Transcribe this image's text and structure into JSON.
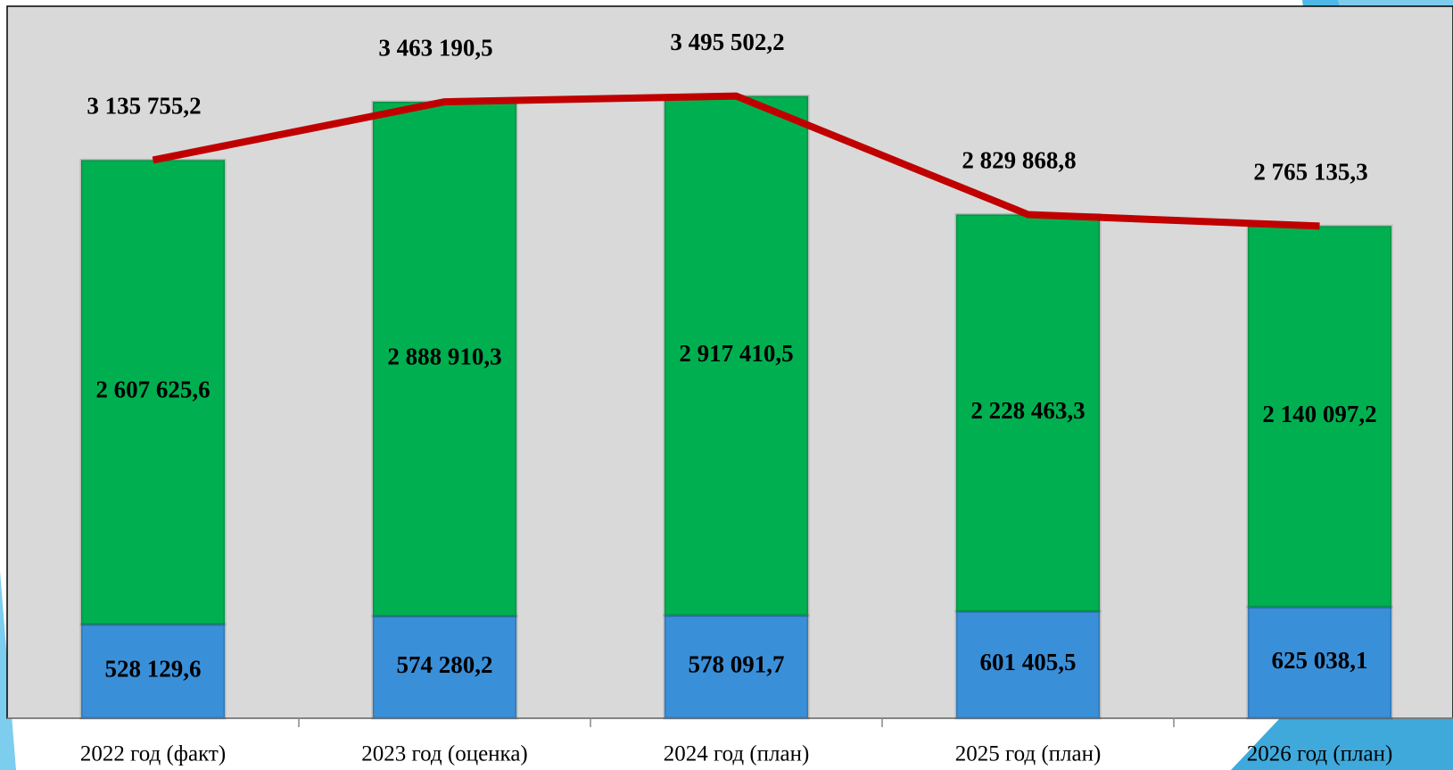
{
  "chart_data": {
    "type": "bar",
    "stacked": true,
    "categories": [
      "2022 год (факт)",
      "2023 год (оценка)",
      "2024 год (план)",
      "2025 год (план)",
      "2026 год (план)"
    ],
    "ylim": [
      0,
      4000000
    ],
    "series": [
      {
        "type": "bar",
        "color": "#3a8fd9",
        "values": [
          528129.6,
          574280.2,
          578091.7,
          601405.5,
          625038.1
        ],
        "value_labels": [
          "528 129,6",
          "574 280,2",
          "578 091,7",
          "601 405,5",
          "625 038,1"
        ]
      },
      {
        "type": "bar",
        "color": "#00b050",
        "values": [
          2607625.6,
          2888910.3,
          2917410.5,
          2228463.3,
          2140097.2
        ],
        "value_labels": [
          "2 607 625,6",
          "2 888 910,3",
          "2 917 410,5",
          "2 228 463,3",
          "2 140 097,2"
        ]
      },
      {
        "type": "line",
        "color": "#c00000",
        "values": [
          3135755.2,
          3463190.5,
          3495502.2,
          2829868.8,
          2765135.3
        ],
        "value_labels": [
          "3 135 755,2",
          "3 463 190,5",
          "3 495 502,2",
          "2 829 868,8",
          "2 765 135,3"
        ]
      }
    ]
  }
}
